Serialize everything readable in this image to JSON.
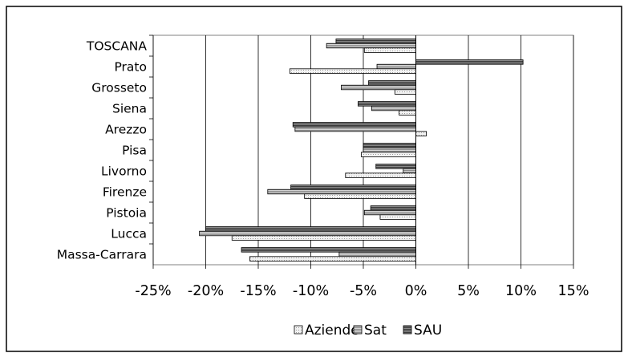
{
  "chart_data": {
    "type": "bar",
    "orientation": "horizontal",
    "categories": [
      "TOSCANA",
      "Prato",
      "Grosseto",
      "Siena",
      "Arezzo",
      "Pisa",
      "Livorno",
      "Firenze",
      "Pistoia",
      "Lucca",
      "Massa-Carrara"
    ],
    "series": [
      {
        "name": "Aziende",
        "values": [
          -4.9,
          -12.0,
          -2.0,
          -1.6,
          1.0,
          -5.2,
          -6.7,
          -10.6,
          -3.4,
          -17.5,
          -15.8
        ],
        "color": "#ececec",
        "pattern": "dots"
      },
      {
        "name": "Sat",
        "values": [
          -8.5,
          -3.7,
          -7.1,
          -4.2,
          -11.5,
          -5.0,
          -1.2,
          -14.1,
          -4.9,
          -20.6,
          -7.3
        ],
        "color": "#bdbdbd",
        "pattern": "hlines"
      },
      {
        "name": "SAU",
        "values": [
          -7.6,
          10.2,
          -4.5,
          -5.5,
          -11.7,
          -5.0,
          -3.8,
          -11.9,
          -4.3,
          -20.0,
          -16.6
        ],
        "color": "#606060",
        "pattern": "hlines"
      }
    ],
    "xlim": [
      -25,
      15
    ],
    "xticks": [
      "-25%",
      "-20%",
      "-15%",
      "-10%",
      "-5%",
      "0%",
      "5%",
      "10%",
      "15%"
    ],
    "grid": "vertical",
    "legend_position": "bottom"
  }
}
